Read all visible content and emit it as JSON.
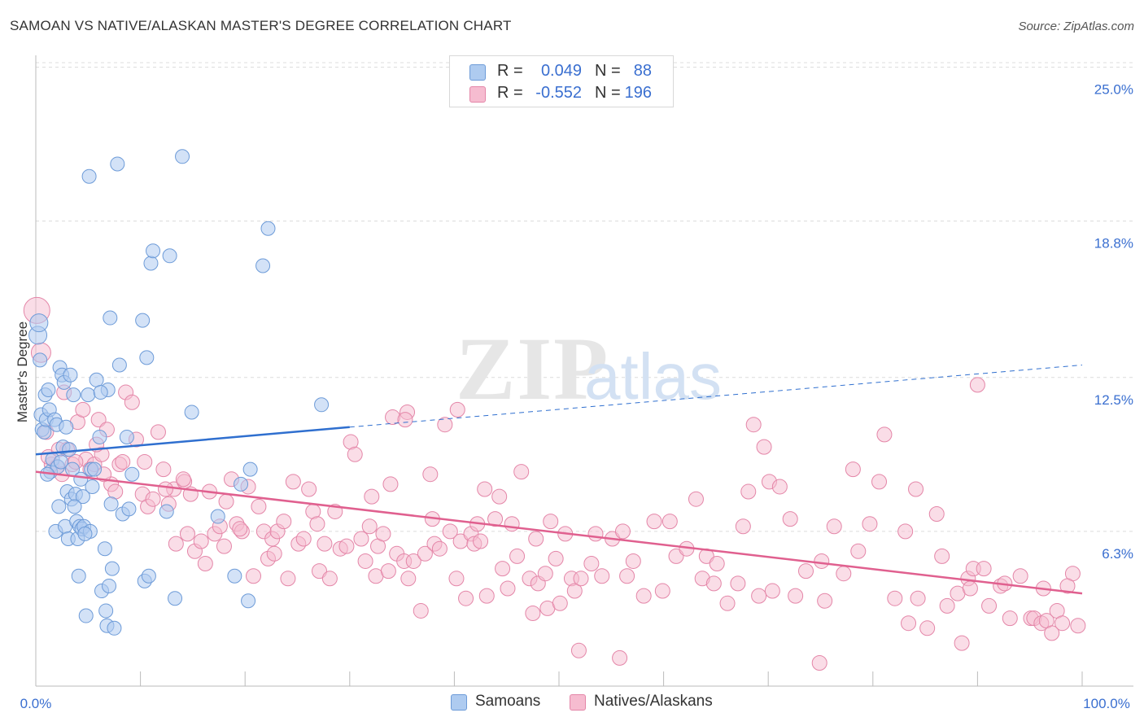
{
  "title": "SAMOAN VS NATIVE/ALASKAN MASTER'S DEGREE CORRELATION CHART",
  "source": "Source: ZipAtlas.com",
  "watermark": "ZIPatlas",
  "colors": {
    "samoans_fill": "#aecbf0",
    "samoans_stroke": "#6d9bd8",
    "samoans_line": "#2f6fcf",
    "natives_fill": "#f6bcd0",
    "natives_stroke": "#e486a8",
    "natives_line": "#e0608f",
    "axis_label": "#3a6fd0"
  },
  "legend": {
    "rows": [
      {
        "r_label": "R =",
        "r_value": "0.049",
        "n_label": "N =",
        "n_value": "88"
      },
      {
        "r_label": "R =",
        "r_value": "-0.552",
        "n_label": "N =",
        "n_value": "196"
      }
    ]
  },
  "bottom_legend": [
    "Samoans",
    "Natives/Alaskans"
  ],
  "chart_data": {
    "type": "scatter",
    "title": "SAMOAN VS NATIVE/ALASKAN MASTER'S DEGREE CORRELATION CHART",
    "xlabel": "",
    "ylabel": "Master's Degree",
    "xlim": [
      0,
      100
    ],
    "ylim": [
      0,
      26.5
    ],
    "x_tick_labels": [
      "0.0%",
      "100.0%"
    ],
    "y_ticks": [
      6.3,
      12.5,
      18.8,
      25.0
    ],
    "y_tick_labels": [
      "6.3%",
      "12.5%",
      "18.8%",
      "25.0%"
    ],
    "grid": "horizontal dashed",
    "legend_position": "top-center",
    "series": [
      {
        "name": "Samoans",
        "R": 0.049,
        "N": 88,
        "trend": {
          "x": [
            0,
            30
          ],
          "y": [
            9.4,
            10.5
          ],
          "dashed_extension": {
            "x": [
              30,
              100
            ],
            "y": [
              10.5,
              13.0
            ]
          }
        },
        "points": [
          [
            0.2,
            14.2
          ],
          [
            0.3,
            14.7
          ],
          [
            0.4,
            13.2
          ],
          [
            0.5,
            11.0
          ],
          [
            0.6,
            10.4
          ],
          [
            0.8,
            10.3
          ],
          [
            0.9,
            11.8
          ],
          [
            1.0,
            10.8
          ],
          [
            1.2,
            12.0
          ],
          [
            1.3,
            11.2
          ],
          [
            1.4,
            8.7
          ],
          [
            1.6,
            9.2
          ],
          [
            1.8,
            10.8
          ],
          [
            1.9,
            6.3
          ],
          [
            2.0,
            10.6
          ],
          [
            2.1,
            8.9
          ],
          [
            2.2,
            7.3
          ],
          [
            2.3,
            12.9
          ],
          [
            2.4,
            9.1
          ],
          [
            2.5,
            12.6
          ],
          [
            2.6,
            9.7
          ],
          [
            2.7,
            12.3
          ],
          [
            2.8,
            6.5
          ],
          [
            3.0,
            7.9
          ],
          [
            3.1,
            6.0
          ],
          [
            3.2,
            9.6
          ],
          [
            3.3,
            12.6
          ],
          [
            3.4,
            7.6
          ],
          [
            3.5,
            8.8
          ],
          [
            3.6,
            11.8
          ],
          [
            3.8,
            7.8
          ],
          [
            3.9,
            6.7
          ],
          [
            4.0,
            6.0
          ],
          [
            4.1,
            4.5
          ],
          [
            4.2,
            6.5
          ],
          [
            4.3,
            8.4
          ],
          [
            4.4,
            6.4
          ],
          [
            4.5,
            7.7
          ],
          [
            4.6,
            6.5
          ],
          [
            4.8,
            2.9
          ],
          [
            5.0,
            11.8
          ],
          [
            5.2,
            6.3
          ],
          [
            5.3,
            8.8
          ],
          [
            5.4,
            8.1
          ],
          [
            5.6,
            8.8
          ],
          [
            5.8,
            12.4
          ],
          [
            6.1,
            10.1
          ],
          [
            6.3,
            3.9
          ],
          [
            6.6,
            5.6
          ],
          [
            6.7,
            3.1
          ],
          [
            6.8,
            2.5
          ],
          [
            6.9,
            12.0
          ],
          [
            7.0,
            4.1
          ],
          [
            7.1,
            14.9
          ],
          [
            7.2,
            7.4
          ],
          [
            7.3,
            4.8
          ],
          [
            7.5,
            2.4
          ],
          [
            7.8,
            21.1
          ],
          [
            8.0,
            13.0
          ],
          [
            8.3,
            7.0
          ],
          [
            8.7,
            10.1
          ],
          [
            8.9,
            7.2
          ],
          [
            9.2,
            8.6
          ],
          [
            10.2,
            14.8
          ],
          [
            10.4,
            4.3
          ],
          [
            10.6,
            13.3
          ],
          [
            10.8,
            4.5
          ],
          [
            11.0,
            17.1
          ],
          [
            11.2,
            17.6
          ],
          [
            12.5,
            7.1
          ],
          [
            12.8,
            17.4
          ],
          [
            13.3,
            3.6
          ],
          [
            14.0,
            21.4
          ],
          [
            14.9,
            11.1
          ],
          [
            17.4,
            6.9
          ],
          [
            19.0,
            4.5
          ],
          [
            19.6,
            8.2
          ],
          [
            20.3,
            3.5
          ],
          [
            20.5,
            8.8
          ],
          [
            21.7,
            17.0
          ],
          [
            22.2,
            18.5
          ],
          [
            27.3,
            11.4
          ],
          [
            5.1,
            20.6
          ],
          [
            1.1,
            8.6
          ],
          [
            2.9,
            10.5
          ],
          [
            3.7,
            7.3
          ],
          [
            4.7,
            6.2
          ],
          [
            6.2,
            11.9
          ]
        ]
      },
      {
        "name": "Natives/Alaskans",
        "R": -0.552,
        "N": 196,
        "trend": {
          "x": [
            0,
            100
          ],
          "y": [
            8.7,
            3.8
          ]
        },
        "points": [
          [
            0.1,
            15.2
          ],
          [
            0.5,
            13.5
          ],
          [
            1.0,
            10.3
          ],
          [
            1.5,
            9.0
          ],
          [
            2.0,
            8.9
          ],
          [
            2.5,
            8.6
          ],
          [
            3.0,
            9.6
          ],
          [
            3.5,
            9.0
          ],
          [
            4.0,
            10.7
          ],
          [
            4.5,
            11.2
          ],
          [
            4.8,
            9.2
          ],
          [
            5.2,
            8.8
          ],
          [
            5.6,
            9.0
          ],
          [
            6.0,
            10.8
          ],
          [
            6.3,
            9.4
          ],
          [
            6.8,
            10.4
          ],
          [
            7.2,
            8.2
          ],
          [
            7.6,
            7.9
          ],
          [
            8.0,
            9.0
          ],
          [
            8.6,
            11.9
          ],
          [
            9.2,
            11.5
          ],
          [
            9.6,
            10.0
          ],
          [
            10.2,
            7.8
          ],
          [
            10.7,
            7.3
          ],
          [
            11.2,
            7.6
          ],
          [
            11.7,
            10.3
          ],
          [
            12.2,
            8.8
          ],
          [
            12.7,
            7.4
          ],
          [
            13.2,
            8.0
          ],
          [
            13.4,
            5.8
          ],
          [
            14.2,
            8.3
          ],
          [
            14.5,
            6.2
          ],
          [
            14.8,
            7.8
          ],
          [
            15.2,
            5.5
          ],
          [
            15.8,
            5.9
          ],
          [
            16.2,
            5.0
          ],
          [
            16.6,
            7.9
          ],
          [
            17.1,
            6.2
          ],
          [
            17.6,
            6.5
          ],
          [
            18.2,
            7.5
          ],
          [
            18.7,
            8.4
          ],
          [
            19.2,
            6.6
          ],
          [
            19.7,
            6.3
          ],
          [
            20.3,
            8.1
          ],
          [
            20.8,
            4.5
          ],
          [
            21.3,
            7.3
          ],
          [
            21.8,
            6.3
          ],
          [
            22.2,
            5.2
          ],
          [
            22.6,
            6.0
          ],
          [
            23.1,
            6.3
          ],
          [
            23.7,
            6.7
          ],
          [
            24.1,
            4.4
          ],
          [
            24.6,
            8.3
          ],
          [
            25.1,
            5.8
          ],
          [
            25.6,
            6.0
          ],
          [
            26.1,
            8.0
          ],
          [
            26.5,
            7.1
          ],
          [
            27.1,
            4.7
          ],
          [
            27.6,
            5.8
          ],
          [
            28.1,
            4.4
          ],
          [
            28.6,
            7.1
          ],
          [
            29.1,
            5.6
          ],
          [
            30.1,
            9.9
          ],
          [
            30.5,
            9.4
          ],
          [
            31.1,
            6.0
          ],
          [
            31.5,
            5.1
          ],
          [
            32.1,
            7.7
          ],
          [
            32.5,
            4.5
          ],
          [
            32.7,
            5.7
          ],
          [
            33.2,
            6.2
          ],
          [
            33.9,
            8.2
          ],
          [
            34.1,
            10.9
          ],
          [
            34.5,
            5.4
          ],
          [
            35.2,
            5.1
          ],
          [
            35.5,
            11.1
          ],
          [
            35.6,
            4.4
          ],
          [
            36.1,
            5.1
          ],
          [
            36.8,
            3.1
          ],
          [
            37.2,
            5.4
          ],
          [
            37.7,
            8.6
          ],
          [
            38.1,
            5.8
          ],
          [
            38.6,
            5.6
          ],
          [
            39.1,
            10.6
          ],
          [
            39.6,
            6.3
          ],
          [
            40.3,
            11.2
          ],
          [
            40.6,
            5.9
          ],
          [
            41.1,
            3.6
          ],
          [
            41.6,
            6.2
          ],
          [
            41.9,
            5.8
          ],
          [
            42.2,
            6.6
          ],
          [
            42.9,
            8.0
          ],
          [
            43.1,
            3.7
          ],
          [
            43.9,
            6.8
          ],
          [
            44.3,
            7.7
          ],
          [
            44.6,
            4.8
          ],
          [
            45.1,
            4.0
          ],
          [
            46.0,
            5.3
          ],
          [
            46.4,
            8.7
          ],
          [
            47.2,
            4.4
          ],
          [
            47.5,
            3.0
          ],
          [
            48.0,
            4.2
          ],
          [
            48.7,
            4.6
          ],
          [
            48.9,
            3.2
          ],
          [
            49.2,
            6.7
          ],
          [
            49.7,
            5.2
          ],
          [
            50.1,
            3.4
          ],
          [
            50.6,
            6.2
          ],
          [
            51.2,
            4.4
          ],
          [
            51.5,
            3.9
          ],
          [
            52.1,
            4.4
          ],
          [
            53.1,
            5.0
          ],
          [
            53.5,
            6.2
          ],
          [
            54.1,
            4.5
          ],
          [
            55.1,
            6.0
          ],
          [
            56.1,
            6.3
          ],
          [
            56.5,
            4.5
          ],
          [
            57.1,
            5.1
          ],
          [
            58.1,
            3.7
          ],
          [
            59.1,
            6.7
          ],
          [
            59.9,
            3.9
          ],
          [
            60.6,
            6.7
          ],
          [
            61.2,
            5.3
          ],
          [
            62.2,
            5.6
          ],
          [
            63.1,
            7.6
          ],
          [
            63.7,
            4.4
          ],
          [
            64.1,
            5.3
          ],
          [
            64.8,
            4.2
          ],
          [
            65.1,
            5.0
          ],
          [
            66.1,
            3.4
          ],
          [
            67.1,
            4.2
          ],
          [
            67.6,
            6.5
          ],
          [
            68.1,
            7.9
          ],
          [
            68.6,
            10.6
          ],
          [
            69.1,
            3.7
          ],
          [
            69.6,
            9.7
          ],
          [
            70.1,
            8.3
          ],
          [
            71.1,
            8.1
          ],
          [
            72.1,
            6.8
          ],
          [
            72.6,
            3.7
          ],
          [
            73.6,
            4.7
          ],
          [
            75.1,
            5.1
          ],
          [
            75.4,
            3.5
          ],
          [
            76.3,
            6.5
          ],
          [
            77.2,
            4.6
          ],
          [
            78.1,
            8.8
          ],
          [
            78.6,
            5.5
          ],
          [
            79.7,
            6.6
          ],
          [
            80.6,
            8.3
          ],
          [
            81.1,
            10.2
          ],
          [
            82.1,
            3.6
          ],
          [
            83.1,
            6.3
          ],
          [
            83.4,
            2.6
          ],
          [
            84.1,
            8.0
          ],
          [
            84.3,
            3.6
          ],
          [
            85.2,
            2.4
          ],
          [
            86.1,
            7.0
          ],
          [
            86.6,
            5.3
          ],
          [
            87.1,
            3.3
          ],
          [
            88.1,
            3.8
          ],
          [
            88.5,
            1.8
          ],
          [
            89.1,
            4.4
          ],
          [
            89.3,
            4.0
          ],
          [
            89.6,
            4.8
          ],
          [
            90.6,
            4.8
          ],
          [
            91.1,
            3.3
          ],
          [
            92.2,
            4.1
          ],
          [
            92.6,
            4.2
          ],
          [
            93.1,
            2.8
          ],
          [
            94.1,
            4.5
          ],
          [
            95.1,
            2.8
          ],
          [
            95.4,
            2.8
          ],
          [
            96.1,
            2.6
          ],
          [
            96.6,
            2.7
          ],
          [
            97.1,
            2.2
          ],
          [
            97.6,
            3.1
          ],
          [
            98.1,
            2.6
          ],
          [
            99.1,
            4.6
          ],
          [
            99.6,
            2.5
          ],
          [
            1.2,
            9.3
          ],
          [
            2.2,
            9.6
          ],
          [
            3.8,
            9.1
          ],
          [
            5.8,
            9.8
          ],
          [
            6.5,
            8.6
          ],
          [
            8.3,
            9.1
          ],
          [
            10.4,
            9.1
          ],
          [
            12.4,
            8.0
          ],
          [
            14.1,
            8.4
          ],
          [
            18.0,
            5.7
          ],
          [
            19.5,
            6.4
          ],
          [
            22.8,
            5.4
          ],
          [
            26.9,
            6.6
          ],
          [
            29.7,
            5.7
          ],
          [
            31.9,
            6.5
          ],
          [
            33.7,
            4.7
          ],
          [
            35.3,
            10.8
          ],
          [
            37.9,
            6.8
          ],
          [
            40.2,
            4.4
          ],
          [
            42.5,
            5.9
          ],
          [
            45.5,
            6.6
          ],
          [
            47.8,
            6.0
          ],
          [
            51.9,
            1.5
          ],
          [
            55.8,
            1.2
          ],
          [
            70.4,
            3.9
          ],
          [
            74.9,
            1.0
          ],
          [
            90.0,
            12.2
          ],
          [
            96.3,
            4.0
          ],
          [
            98.6,
            4.1
          ],
          [
            2.7,
            11.9
          ]
        ]
      }
    ]
  }
}
